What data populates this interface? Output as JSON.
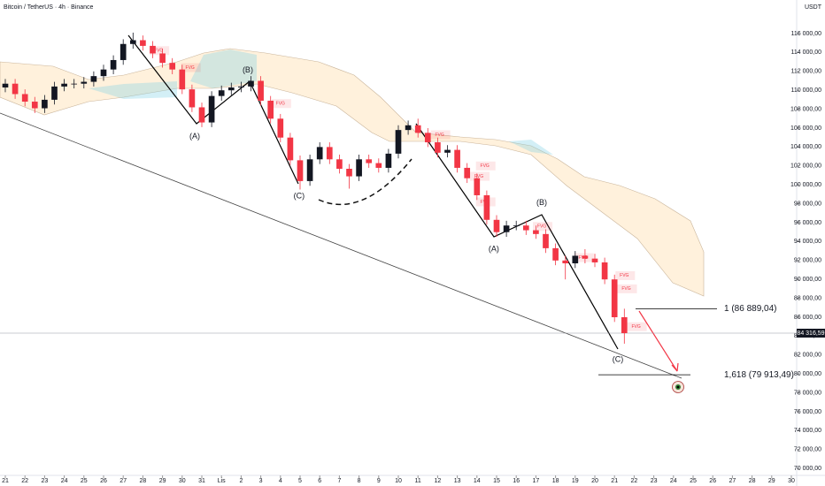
{
  "header": {
    "title": "Bitcoin / TetherUS · 4h · Binance",
    "currency": "USDT"
  },
  "chart_data": {
    "type": "candlestick",
    "up_color": "#131722",
    "down_color": "#f23645",
    "xlim": [
      -0.27,
      40.27
    ],
    "ylim": [
      69271,
      119551
    ],
    "xticks": [
      {
        "value": 0,
        "label": "21"
      },
      {
        "value": 1,
        "label": "22"
      },
      {
        "value": 2,
        "label": "23"
      },
      {
        "value": 3,
        "label": "24"
      },
      {
        "value": 4,
        "label": "25"
      },
      {
        "value": 5,
        "label": "26"
      },
      {
        "value": 6,
        "label": "27"
      },
      {
        "value": 7,
        "label": "28"
      },
      {
        "value": 8,
        "label": "29"
      },
      {
        "value": 9,
        "label": "30"
      },
      {
        "value": 10,
        "label": "31"
      },
      {
        "value": 11,
        "label": "Lis"
      },
      {
        "value": 12,
        "label": "2"
      },
      {
        "value": 13,
        "label": "3"
      },
      {
        "value": 14,
        "label": "4"
      },
      {
        "value": 15,
        "label": "5"
      },
      {
        "value": 16,
        "label": "6"
      },
      {
        "value": 17,
        "label": "7"
      },
      {
        "value": 18,
        "label": "8"
      },
      {
        "value": 19,
        "label": "9"
      },
      {
        "value": 20,
        "label": "10"
      },
      {
        "value": 21,
        "label": "11"
      },
      {
        "value": 22,
        "label": "12"
      },
      {
        "value": 23,
        "label": "13"
      },
      {
        "value": 24,
        "label": "14"
      },
      {
        "value": 25,
        "label": "15"
      },
      {
        "value": 26,
        "label": "16"
      },
      {
        "value": 27,
        "label": "17"
      },
      {
        "value": 28,
        "label": "18"
      },
      {
        "value": 29,
        "label": "19"
      },
      {
        "value": 30,
        "label": "20"
      },
      {
        "value": 31,
        "label": "21"
      },
      {
        "value": 32,
        "label": "22"
      },
      {
        "value": 33,
        "label": "23"
      },
      {
        "value": 34,
        "label": "24"
      },
      {
        "value": 35,
        "label": "25"
      },
      {
        "value": 36,
        "label": "26"
      },
      {
        "value": 37,
        "label": "27"
      },
      {
        "value": 38,
        "label": "28"
      },
      {
        "value": 39,
        "label": "29"
      },
      {
        "value": 40,
        "label": "30"
      }
    ],
    "yticks": [
      {
        "value": 116000,
        "label": "116 000,00"
      },
      {
        "value": 114000,
        "label": "114 000,00"
      },
      {
        "value": 112000,
        "label": "112 000,00"
      },
      {
        "value": 110000,
        "label": "110 000,00"
      },
      {
        "value": 108000,
        "label": "108 000,00"
      },
      {
        "value": 106000,
        "label": "106 000,00"
      },
      {
        "value": 104000,
        "label": "104 000,00"
      },
      {
        "value": 102000,
        "label": "102 000,00"
      },
      {
        "value": 100000,
        "label": "100 000,00"
      },
      {
        "value": 98000,
        "label": "98 000,00"
      },
      {
        "value": 96000,
        "label": "96 000,00"
      },
      {
        "value": 94000,
        "label": "94 000,00"
      },
      {
        "value": 92000,
        "label": "92 000,00"
      },
      {
        "value": 90000,
        "label": "90 000,00"
      },
      {
        "value": 88000,
        "label": "88 000,00"
      },
      {
        "value": 86000,
        "label": "86 000,00"
      },
      {
        "value": 84000,
        "label": "84 000,00"
      },
      {
        "value": 82000,
        "label": "82 000,00"
      },
      {
        "value": 80000,
        "label": "80 000,00"
      },
      {
        "value": 78000,
        "label": "78 000,00"
      },
      {
        "value": 76000,
        "label": "76 000,00"
      },
      {
        "value": 74000,
        "label": "74 000,00"
      },
      {
        "value": 72000,
        "label": "72 000,00"
      },
      {
        "value": 70000,
        "label": "70 000,00"
      }
    ],
    "x": [
      0,
      0.5,
      1,
      1.5,
      2,
      2.5,
      3,
      3.5,
      4,
      4.5,
      5,
      5.5,
      6,
      6.5,
      7,
      7.5,
      8,
      8.5,
      9,
      9.5,
      10,
      10.5,
      11,
      11.5,
      12,
      12.5,
      13,
      13.5,
      14,
      14.5,
      15,
      15.5,
      16,
      16.5,
      17,
      17.5,
      18,
      18.5,
      19,
      19.5,
      20,
      20.5,
      21,
      21.5,
      22,
      22.5,
      23,
      23.5,
      24,
      24.5,
      25,
      25.5,
      26,
      26.5,
      27,
      27.5,
      28,
      28.5,
      29,
      29.5,
      30,
      30.5,
      31,
      31.5
    ],
    "open": [
      110300,
      110700,
      109600,
      108800,
      108100,
      109000,
      110400,
      110700,
      110700,
      110900,
      111500,
      112200,
      113200,
      114900,
      115300,
      114700,
      113900,
      112900,
      112200,
      110100,
      108200,
      106600,
      109400,
      110000,
      110300,
      110400,
      111000,
      108900,
      107000,
      105000,
      102600,
      100400,
      102700,
      104000,
      102700,
      101700,
      100900,
      102700,
      102300,
      101800,
      103300,
      105800,
      106300,
      105500,
      104500,
      103400,
      103700,
      101800,
      100700,
      98900,
      96300,
      95000,
      95700,
      95700,
      95200,
      94800,
      93300,
      92000,
      91700,
      92500,
      92200,
      91800,
      90000,
      86000
    ],
    "high": [
      111200,
      111200,
      110100,
      109300,
      109500,
      110900,
      111200,
      111200,
      111400,
      112000,
      112700,
      113700,
      115400,
      116100,
      115800,
      115200,
      114400,
      113400,
      112700,
      110600,
      108700,
      109900,
      110500,
      110800,
      110900,
      111500,
      111500,
      109400,
      107500,
      105500,
      103100,
      103200,
      104500,
      104500,
      103200,
      102200,
      103200,
      103200,
      102800,
      103800,
      106300,
      106800,
      107000,
      106000,
      105000,
      104200,
      104200,
      102300,
      101200,
      99400,
      96800,
      96200,
      96200,
      96200,
      95700,
      95300,
      93800,
      92500,
      93000,
      93200,
      92700,
      92300,
      90500,
      86900
    ],
    "low": [
      109800,
      109100,
      108300,
      107600,
      107600,
      108500,
      109900,
      110200,
      110200,
      110400,
      111000,
      111700,
      112700,
      114400,
      114200,
      113400,
      112400,
      111700,
      109600,
      107700,
      106100,
      106100,
      108900,
      109500,
      109800,
      109900,
      108400,
      106500,
      104500,
      102100,
      99500,
      99900,
      102200,
      102200,
      101200,
      99600,
      100400,
      101800,
      101300,
      101300,
      102800,
      105300,
      105000,
      104000,
      102900,
      102900,
      101300,
      100200,
      98400,
      95800,
      94500,
      94500,
      95200,
      94700,
      94300,
      92800,
      91500,
      90000,
      91200,
      91700,
      91300,
      89500,
      85500,
      83200
    ],
    "close": [
      110700,
      109600,
      108800,
      108100,
      109000,
      110400,
      110700,
      110700,
      110900,
      111500,
      112200,
      113200,
      114900,
      115300,
      114700,
      113900,
      112900,
      112200,
      110100,
      108200,
      106600,
      109400,
      110000,
      110300,
      110400,
      111000,
      108900,
      107000,
      105000,
      102600,
      100400,
      102700,
      104000,
      102700,
      101700,
      100900,
      102700,
      102300,
      101800,
      103300,
      105800,
      106300,
      105500,
      104500,
      103400,
      103700,
      101800,
      100700,
      98900,
      96300,
      95000,
      95700,
      95700,
      95200,
      94800,
      93300,
      92000,
      91700,
      92500,
      92200,
      91800,
      90000,
      86000,
      84316.59
    ],
    "last_price": {
      "value": 84316.59,
      "label": "84 316,59"
    },
    "levels": [
      {
        "value": 86889.04,
        "label": "1 (86 889,04)"
      },
      {
        "value": 79913.49,
        "label": "1,618 (79 913,49)"
      }
    ],
    "wave_labels": [
      {
        "text": "(A)",
        "x": 9.64,
        "y": 105100
      },
      {
        "text": "(B)",
        "x": 12.34,
        "y": 112100
      },
      {
        "text": "(C)",
        "x": 14.95,
        "y": 98800
      },
      {
        "text": "(A)",
        "x": 24.86,
        "y": 93200
      },
      {
        "text": "(B)",
        "x": 27.3,
        "y": 98100
      },
      {
        "text": "(C)",
        "x": 31.17,
        "y": 81500
      }
    ],
    "fvg_labels": [
      {
        "text": "FVG",
        "x": 7.8,
        "y": 114200
      },
      {
        "text": "FVG",
        "x": 9.4,
        "y": 112400
      },
      {
        "text": "FVG",
        "x": 14.0,
        "y": 108600
      },
      {
        "text": "FVG",
        "x": 22.1,
        "y": 105300
      },
      {
        "text": "FVG",
        "x": 24.4,
        "y": 102000
      },
      {
        "text": "FVG",
        "x": 24.1,
        "y": 100900
      },
      {
        "text": "FVG",
        "x": 24.4,
        "y": 98200
      },
      {
        "text": "FVG",
        "x": 27.3,
        "y": 95600
      },
      {
        "text": "FVG",
        "x": 29.4,
        "y": 92300
      },
      {
        "text": "FVG",
        "x": 31.5,
        "y": 90400
      },
      {
        "text": "FVG",
        "x": 31.6,
        "y": 89000
      },
      {
        "text": "FVG",
        "x": 32.1,
        "y": 85000
      }
    ]
  }
}
